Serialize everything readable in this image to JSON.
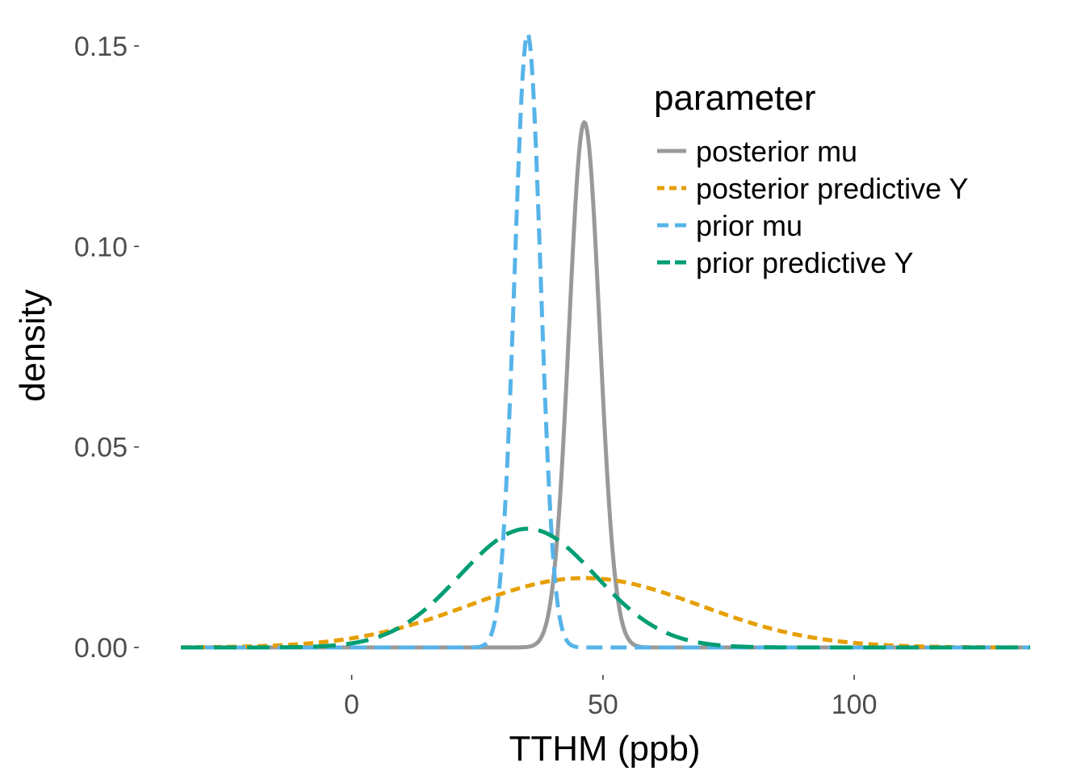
{
  "chart_data": {
    "type": "line",
    "title": "",
    "xlabel": "TTHM (ppb)",
    "ylabel": "density",
    "xlim": [
      -34,
      135
    ],
    "ylim": [
      0,
      0.152
    ],
    "x_ticks": [
      0,
      50,
      100
    ],
    "x_tick_labels": [
      "0",
      "50",
      "100"
    ],
    "y_ticks": [
      0,
      0.05,
      0.1,
      0.15
    ],
    "y_tick_labels": [
      "0.00",
      "0.05",
      "0.10",
      "0.15"
    ],
    "grid": false,
    "legend": {
      "title": "parameter",
      "position": "top-right"
    },
    "series": [
      {
        "name": "posterior mu",
        "color": "#999999",
        "line_style": "solid",
        "distribution": "normal",
        "mean": 46.3,
        "sd": 3.05,
        "peak_density": 0.131
      },
      {
        "name": "posterior predictive Y",
        "color": "#E69F00",
        "line_style": "short-dash",
        "distribution": "normal",
        "mean": 46.3,
        "sd": 23.0,
        "peak_density": 0.0173
      },
      {
        "name": "prior mu",
        "color": "#56B4E9",
        "line_style": "dash",
        "distribution": "normal",
        "mean": 35,
        "sd": 2.6,
        "peak_density": 0.153
      },
      {
        "name": "prior predictive Y",
        "color": "#009E73",
        "line_style": "long-dash",
        "distribution": "normal",
        "mean": 35,
        "sd": 13.5,
        "peak_density": 0.0296
      }
    ]
  }
}
